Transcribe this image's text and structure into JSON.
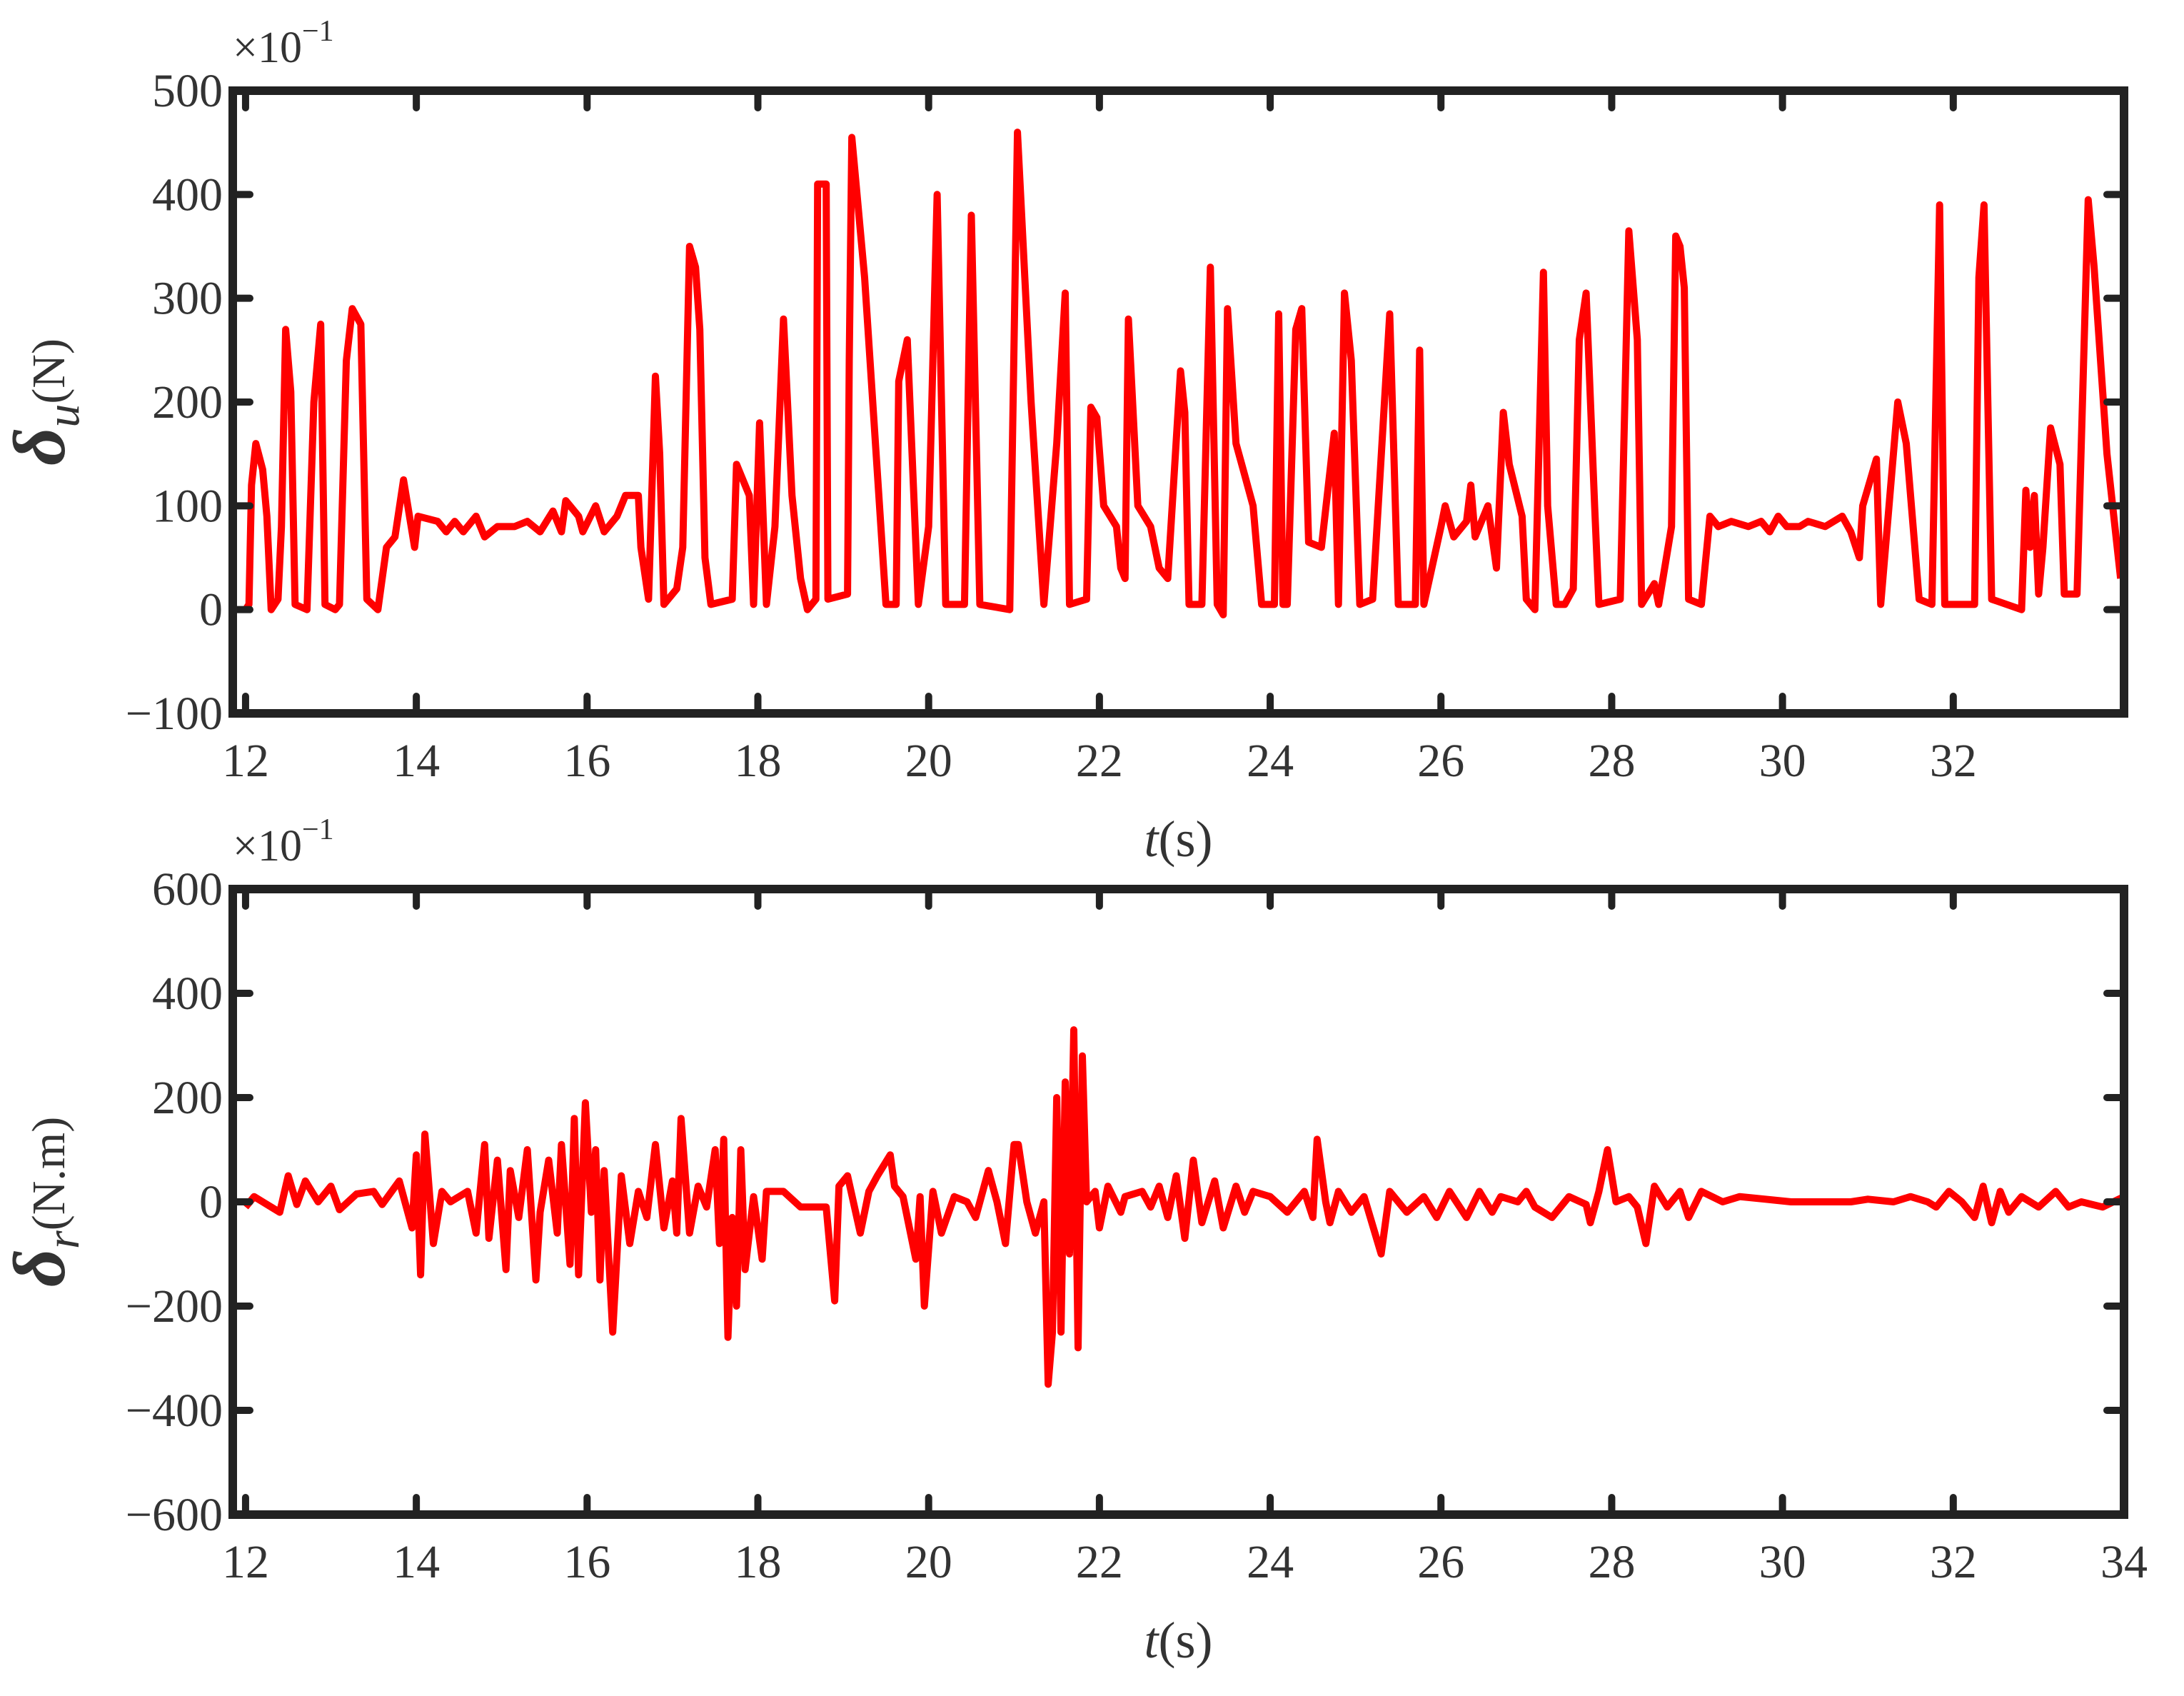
{
  "chart_data": [
    {
      "type": "line",
      "color": "#ff0000",
      "multiplier": {
        "base": "×10",
        "exponent": "−1"
      },
      "ylabel": {
        "symbol": "δ",
        "subscript": "u",
        "unit": "(N)"
      },
      "xlabel": {
        "symbol": "t",
        "unit": "(s)"
      },
      "xlim": [
        11.85,
        34
      ],
      "xticks": [
        12,
        14,
        16,
        18,
        20,
        22,
        24,
        26,
        28,
        30,
        32
      ],
      "ylim": [
        -100,
        500
      ],
      "yticks": [
        {
          "value": -100,
          "label": "−100"
        },
        0,
        100,
        200,
        300,
        400,
        500
      ],
      "x": [
        12.0,
        12.04,
        12.07,
        12.12,
        12.2,
        12.25,
        12.3,
        12.38,
        12.42,
        12.47,
        12.53,
        12.58,
        12.72,
        12.8,
        12.88,
        12.93,
        13.05,
        13.1,
        13.18,
        13.25,
        13.35,
        13.42,
        13.55,
        13.65,
        13.75,
        13.85,
        13.98,
        14.02,
        14.25,
        14.35,
        14.45,
        14.55,
        14.7,
        14.8,
        14.95,
        15.15,
        15.3,
        15.45,
        15.6,
        15.7,
        15.75,
        15.9,
        15.95,
        16.1,
        16.2,
        16.35,
        16.45,
        16.6,
        16.63,
        16.72,
        16.8,
        16.85,
        16.9,
        17.05,
        17.12,
        17.2,
        17.27,
        17.32,
        17.38,
        17.45,
        17.7,
        17.75,
        17.9,
        17.95,
        18.02,
        18.1,
        18.2,
        18.3,
        18.4,
        18.5,
        18.58,
        18.68,
        18.7,
        18.8,
        18.82,
        19.05,
        19.07,
        19.1,
        19.25,
        19.5,
        19.62,
        19.65,
        19.75,
        19.88,
        20.0,
        20.1,
        20.2,
        20.42,
        20.5,
        20.6,
        20.95,
        21.04,
        21.2,
        21.35,
        21.5,
        21.6,
        21.65,
        21.85,
        21.9,
        21.97,
        22.05,
        22.2,
        22.25,
        22.3,
        22.34,
        22.45,
        22.6,
        22.7,
        22.8,
        22.95,
        23.0,
        23.05,
        23.2,
        23.3,
        23.38,
        23.45,
        23.5,
        23.6,
        23.7,
        23.8,
        23.9,
        24.05,
        24.1,
        24.15,
        24.2,
        24.3,
        24.37,
        24.45,
        24.6,
        24.75,
        24.8,
        24.87,
        24.95,
        25.05,
        25.2,
        25.4,
        25.5,
        25.7,
        25.75,
        25.8,
        26.0,
        26.05,
        26.15,
        26.3,
        26.35,
        26.4,
        26.55,
        26.65,
        26.73,
        26.8,
        26.95,
        27.0,
        27.1,
        27.2,
        27.25,
        27.35,
        27.45,
        27.55,
        27.62,
        27.7,
        27.8,
        27.85,
        28.1,
        28.2,
        28.3,
        28.35,
        28.5,
        28.55,
        28.7,
        28.75,
        28.8,
        28.85,
        28.9,
        29.05,
        29.15,
        29.25,
        29.4,
        29.6,
        29.75,
        29.85,
        29.95,
        30.05,
        30.2,
        30.3,
        30.5,
        30.7,
        30.8,
        30.9,
        30.94,
        31.1,
        31.15,
        31.35,
        31.45,
        31.6,
        31.75,
        31.84,
        31.9,
        32.25,
        32.3,
        32.36,
        32.45,
        32.8,
        32.85,
        32.9,
        32.95,
        33.0,
        33.05,
        33.14,
        33.25,
        33.3,
        33.45,
        33.58,
        33.65,
        33.8,
        33.96
      ],
      "values": [
        0,
        5,
        120,
        160,
        135,
        90,
        0,
        10,
        80,
        270,
        210,
        5,
        0,
        200,
        275,
        5,
        0,
        5,
        240,
        290,
        275,
        10,
        0,
        60,
        70,
        125,
        60,
        90,
        85,
        75,
        85,
        75,
        90,
        70,
        80,
        80,
        85,
        75,
        95,
        75,
        105,
        90,
        75,
        100,
        75,
        90,
        110,
        110,
        60,
        10,
        225,
        150,
        5,
        20,
        60,
        350,
        330,
        270,
        50,
        5,
        10,
        140,
        110,
        5,
        180,
        5,
        80,
        280,
        110,
        30,
        0,
        10,
        410,
        410,
        10,
        15,
        240,
        455,
        320,
        5,
        5,
        220,
        260,
        5,
        80,
        400,
        5,
        5,
        380,
        5,
        0,
        460,
        200,
        5,
        160,
        305,
        5,
        10,
        195,
        185,
        100,
        80,
        40,
        30,
        280,
        100,
        80,
        40,
        30,
        230,
        190,
        5,
        5,
        330,
        5,
        -5,
        290,
        160,
        130,
        100,
        5,
        5,
        285,
        5,
        5,
        270,
        290,
        65,
        60,
        170,
        5,
        305,
        240,
        5,
        10,
        285,
        5,
        5,
        250,
        5,
        80,
        100,
        70,
        85,
        120,
        70,
        100,
        40,
        190,
        140,
        90,
        10,
        0,
        325,
        100,
        5,
        5,
        20,
        260,
        305,
        100,
        5,
        10,
        365,
        260,
        5,
        25,
        5,
        80,
        360,
        350,
        310,
        10,
        5,
        90,
        80,
        85,
        80,
        85,
        75,
        90,
        80,
        80,
        85,
        80,
        90,
        75,
        50,
        100,
        145,
        5,
        200,
        160,
        10,
        5,
        390,
        5,
        5,
        320,
        390,
        10,
        0,
        115,
        60,
        110,
        15,
        60,
        175,
        140,
        15,
        15,
        395,
        330,
        150,
        30
      ]
    },
    {
      "type": "line",
      "color": "#ff0000",
      "multiplier": {
        "base": "×10",
        "exponent": "−1"
      },
      "ylabel": {
        "symbol": "δ",
        "subscript": "r",
        "unit": "(N.m)"
      },
      "xlabel": {
        "symbol": "t",
        "unit": "(s)"
      },
      "xlim": [
        11.85,
        34
      ],
      "xticks": [
        12,
        14,
        16,
        18,
        20,
        22,
        24,
        26,
        28,
        30,
        32,
        34
      ],
      "ylim": [
        -600,
        600
      ],
      "yticks": [
        {
          "value": -600,
          "label": "−600"
        },
        {
          "value": -400,
          "label": "−400"
        },
        {
          "value": -200,
          "label": "−200"
        },
        0,
        200,
        400,
        600
      ],
      "x": [
        12.0,
        12.1,
        12.2,
        12.4,
        12.5,
        12.6,
        12.7,
        12.85,
        13.0,
        13.1,
        13.3,
        13.5,
        13.6,
        13.8,
        13.95,
        14.0,
        14.05,
        14.1,
        14.2,
        14.3,
        14.4,
        14.5,
        14.6,
        14.7,
        14.8,
        14.85,
        14.95,
        15.05,
        15.1,
        15.2,
        15.3,
        15.4,
        15.45,
        15.55,
        15.65,
        15.7,
        15.8,
        15.85,
        15.9,
        15.98,
        16.05,
        16.1,
        16.15,
        16.2,
        16.3,
        16.4,
        16.5,
        16.6,
        16.7,
        16.8,
        16.9,
        17.0,
        17.05,
        17.1,
        17.2,
        17.3,
        17.4,
        17.5,
        17.55,
        17.6,
        17.65,
        17.7,
        17.75,
        17.8,
        17.85,
        17.95,
        18.0,
        18.05,
        18.1,
        18.3,
        18.5,
        18.8,
        18.9,
        18.95,
        19.05,
        19.2,
        19.3,
        19.4,
        19.55,
        19.6,
        19.7,
        19.85,
        19.9,
        19.95,
        20.05,
        20.15,
        20.3,
        20.45,
        20.55,
        20.7,
        20.8,
        20.9,
        21.0,
        21.05,
        21.15,
        21.25,
        21.35,
        21.4,
        21.45,
        21.5,
        21.55,
        21.6,
        21.65,
        21.7,
        21.75,
        21.8,
        21.85,
        21.95,
        22.0,
        22.1,
        22.25,
        22.3,
        22.5,
        22.6,
        22.7,
        22.8,
        22.9,
        23.0,
        23.1,
        23.2,
        23.35,
        23.45,
        23.6,
        23.7,
        23.8,
        24.0,
        24.2,
        24.4,
        24.5,
        24.55,
        24.65,
        24.7,
        24.8,
        24.95,
        25.1,
        25.3,
        25.4,
        25.6,
        25.8,
        25.95,
        26.1,
        26.3,
        26.45,
        26.6,
        26.7,
        26.9,
        27.0,
        27.1,
        27.3,
        27.4,
        27.5,
        27.7,
        27.75,
        27.85,
        27.95,
        28.05,
        28.2,
        28.3,
        28.4,
        28.5,
        28.65,
        28.8,
        28.9,
        29.05,
        29.3,
        29.5,
        29.8,
        30.1,
        30.5,
        30.8,
        31.0,
        31.3,
        31.5,
        31.7,
        31.8,
        31.95,
        32.1,
        32.25,
        32.35,
        32.45,
        32.55,
        32.65,
        32.8,
        33.0,
        33.2,
        33.35,
        33.5,
        33.75,
        34.0
      ],
      "values": [
        -10,
        10,
        0,
        -20,
        50,
        -5,
        40,
        0,
        30,
        -15,
        15,
        20,
        -5,
        40,
        -50,
        90,
        -140,
        130,
        -80,
        20,
        0,
        10,
        20,
        -60,
        110,
        -70,
        80,
        -130,
        60,
        -30,
        100,
        -150,
        -20,
        80,
        -60,
        110,
        -120,
        160,
        -140,
        190,
        -20,
        100,
        -150,
        60,
        -250,
        50,
        -80,
        20,
        -30,
        110,
        -50,
        40,
        -60,
        160,
        -60,
        30,
        -10,
        100,
        -80,
        120,
        -260,
        -30,
        -200,
        100,
        -130,
        10,
        -50,
        -110,
        20,
        20,
        -10,
        -10,
        -190,
        30,
        50,
        -60,
        20,
        50,
        90,
        30,
        10,
        -110,
        10,
        -200,
        20,
        -60,
        10,
        0,
        -30,
        60,
        0,
        -80,
        110,
        110,
        0,
        -60,
        0,
        -350,
        -250,
        200,
        -250,
        230,
        -100,
        330,
        -280,
        280,
        0,
        20,
        -50,
        30,
        -20,
        10,
        20,
        -10,
        30,
        -30,
        50,
        -70,
        80,
        -40,
        40,
        -50,
        30,
        -20,
        20,
        10,
        -20,
        20,
        -30,
        120,
        0,
        -40,
        20,
        -20,
        10,
        -100,
        20,
        -20,
        10,
        -30,
        20,
        -30,
        20,
        -20,
        10,
        0,
        20,
        -10,
        -30,
        -10,
        10,
        -5,
        -40,
        20,
        100,
        0,
        10,
        -10,
        -80,
        30,
        -10,
        20,
        -30,
        20,
        0,
        10,
        5,
        0,
        0,
        0,
        5,
        0,
        10,
        0,
        -10,
        20,
        0,
        -30,
        30,
        -40,
        20,
        -20,
        10,
        -10,
        20,
        -10,
        0,
        -10,
        10
      ]
    }
  ]
}
